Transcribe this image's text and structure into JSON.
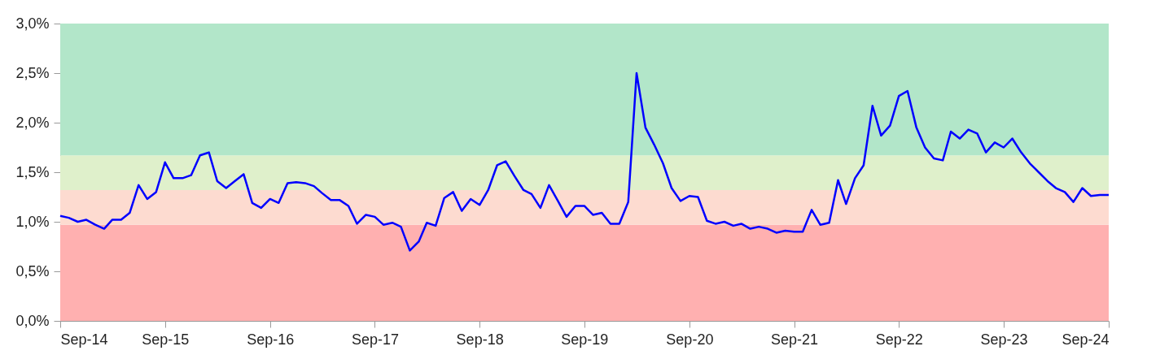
{
  "chart_data": {
    "type": "line",
    "x": [
      "2014-09",
      "2014-10",
      "2014-11",
      "2014-12",
      "2015-01",
      "2015-02",
      "2015-03",
      "2015-04",
      "2015-05",
      "2015-06",
      "2015-07",
      "2015-08",
      "2015-09",
      "2015-10",
      "2015-11",
      "2015-12",
      "2016-01",
      "2016-02",
      "2016-03",
      "2016-04",
      "2016-05",
      "2016-06",
      "2016-07",
      "2016-08",
      "2016-09",
      "2016-10",
      "2016-11",
      "2016-12",
      "2017-01",
      "2017-02",
      "2017-03",
      "2017-04",
      "2017-05",
      "2017-06",
      "2017-07",
      "2017-08",
      "2017-09",
      "2017-10",
      "2017-11",
      "2017-12",
      "2018-01",
      "2018-02",
      "2018-03",
      "2018-04",
      "2018-05",
      "2018-06",
      "2018-07",
      "2018-08",
      "2018-09",
      "2018-10",
      "2018-11",
      "2018-12",
      "2019-01",
      "2019-02",
      "2019-03",
      "2019-04",
      "2019-05",
      "2019-06",
      "2019-07",
      "2019-08",
      "2019-09",
      "2019-10",
      "2019-11",
      "2019-12",
      "2020-01",
      "2020-02",
      "2020-03",
      "2020-04",
      "2020-05",
      "2020-06",
      "2020-07",
      "2020-08",
      "2020-09",
      "2020-10",
      "2020-11",
      "2020-12",
      "2021-01",
      "2021-02",
      "2021-03",
      "2021-04",
      "2021-05",
      "2021-06",
      "2021-07",
      "2021-08",
      "2021-09",
      "2021-10",
      "2021-11",
      "2021-12",
      "2022-01",
      "2022-02",
      "2022-03",
      "2022-04",
      "2022-05",
      "2022-06",
      "2022-07",
      "2022-08",
      "2022-09",
      "2022-10",
      "2022-11",
      "2022-12",
      "2023-01",
      "2023-02",
      "2023-03",
      "2023-04",
      "2023-05",
      "2023-06",
      "2023-07",
      "2023-08",
      "2023-09",
      "2023-10",
      "2023-11",
      "2023-12",
      "2024-01",
      "2024-02",
      "2024-03",
      "2024-04",
      "2024-05",
      "2024-06",
      "2024-07",
      "2024-08",
      "2024-09"
    ],
    "series": [
      {
        "color": "#0000ff",
        "values": [
          1.06,
          1.04,
          1.0,
          1.02,
          0.97,
          0.93,
          1.02,
          1.02,
          1.09,
          1.37,
          1.23,
          1.3,
          1.6,
          1.44,
          1.44,
          1.47,
          1.67,
          1.7,
          1.41,
          1.34,
          1.41,
          1.48,
          1.19,
          1.14,
          1.23,
          1.19,
          1.39,
          1.4,
          1.39,
          1.36,
          1.29,
          1.22,
          1.22,
          1.16,
          0.98,
          1.07,
          1.05,
          0.97,
          0.99,
          0.95,
          0.71,
          0.8,
          0.99,
          0.96,
          1.24,
          1.3,
          1.11,
          1.23,
          1.17,
          1.32,
          1.57,
          1.61,
          1.46,
          1.32,
          1.28,
          1.14,
          1.37,
          1.21,
          1.05,
          1.16,
          1.16,
          1.07,
          1.09,
          0.98,
          0.98,
          1.2,
          2.5,
          1.95,
          1.78,
          1.59,
          1.34,
          1.21,
          1.26,
          1.25,
          1.01,
          0.98,
          1.0,
          0.96,
          0.98,
          0.93,
          0.95,
          0.93,
          0.89,
          0.91,
          0.9,
          0.9,
          1.12,
          0.97,
          0.99,
          1.42,
          1.18,
          1.44,
          1.57,
          2.17,
          1.87,
          1.97,
          2.27,
          2.32,
          1.95,
          1.75,
          1.64,
          1.62,
          1.91,
          1.84,
          1.93,
          1.89,
          1.7,
          1.8,
          1.75,
          1.84,
          1.7,
          1.59,
          1.5,
          1.41,
          1.34,
          1.3,
          1.2,
          1.34,
          1.26,
          1.27,
          1.27
        ]
      }
    ],
    "xlim": [
      "2014-09",
      "2024-09"
    ],
    "xticks": [
      {
        "value": "2014-09",
        "label": "Sep-14"
      },
      {
        "value": "2015-09",
        "label": "Sep-15"
      },
      {
        "value": "2016-09",
        "label": "Sep-16"
      },
      {
        "value": "2017-09",
        "label": "Sep-17"
      },
      {
        "value": "2018-09",
        "label": "Sep-18"
      },
      {
        "value": "2019-09",
        "label": "Sep-19"
      },
      {
        "value": "2020-09",
        "label": "Sep-20"
      },
      {
        "value": "2021-09",
        "label": "Sep-21"
      },
      {
        "value": "2022-09",
        "label": "Sep-22"
      },
      {
        "value": "2023-09",
        "label": "Sep-23"
      },
      {
        "value": "2024-09",
        "label": "Sep-24"
      }
    ],
    "ylim": [
      0,
      3.0
    ],
    "yticks": [
      {
        "value": 0,
        "label": "0,0%"
      },
      {
        "value": 0.5,
        "label": "0,5%"
      },
      {
        "value": 1.0,
        "label": "1,0%"
      },
      {
        "value": 1.5,
        "label": "1,5%"
      },
      {
        "value": 2.0,
        "label": "2,0%"
      },
      {
        "value": 2.5,
        "label": "2,5%"
      },
      {
        "value": 3.0,
        "label": "3,0%"
      }
    ],
    "bands": [
      {
        "axis": "y",
        "from": 0,
        "to": 0.97,
        "color": "#ffb0b0"
      },
      {
        "axis": "y",
        "from": 0.97,
        "to": 1.32,
        "color": "#fddbd0"
      },
      {
        "axis": "y",
        "from": 1.32,
        "to": 1.67,
        "color": "#dff0cb"
      },
      {
        "axis": "y",
        "from": 1.67,
        "to": 3.0,
        "color": "#b2e6c9"
      }
    ],
    "grid": false,
    "marker": "none",
    "line_style": "solid"
  }
}
